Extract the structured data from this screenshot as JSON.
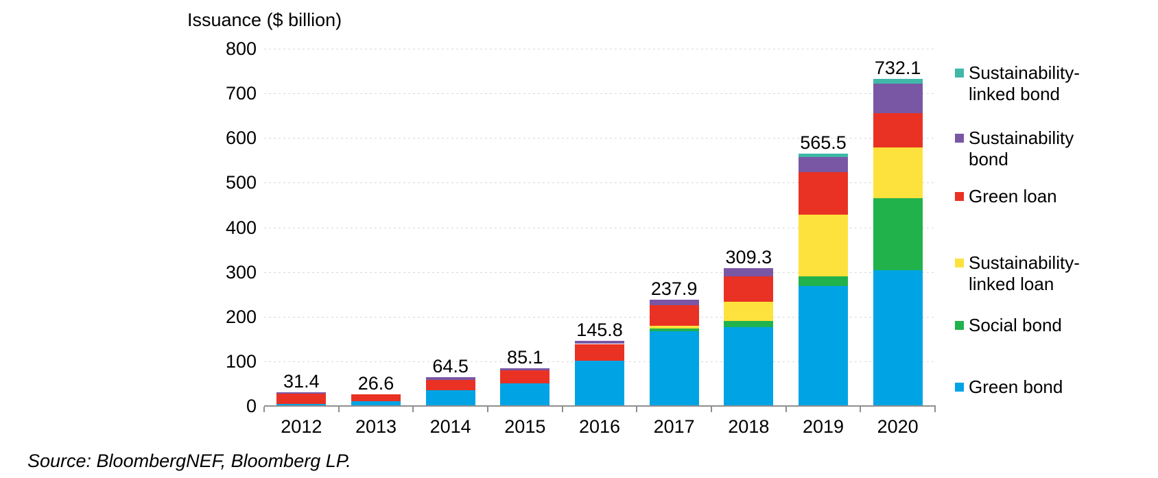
{
  "chart_data": {
    "type": "bar",
    "stacked": true,
    "title": "Issuance ($ billion)",
    "xlabel": "",
    "ylabel": "Issuance ($ billion)",
    "ylim": [
      0,
      800
    ],
    "y_ticks": [
      0,
      100,
      200,
      300,
      400,
      500,
      600,
      700,
      800
    ],
    "grid": "horizontal-dashed",
    "legend_position": "right",
    "legend_order_top_to_bottom": [
      "Sustainability-linked bond",
      "Sustainability bond",
      "Green loan",
      "Sustainability-linked loan",
      "Social bond",
      "Green bond"
    ],
    "categories": [
      "2012",
      "2013",
      "2014",
      "2015",
      "2016",
      "2017",
      "2018",
      "2019",
      "2020"
    ],
    "totals": [
      31.4,
      26.6,
      64.5,
      85.1,
      145.8,
      237.9,
      309.3,
      565.5,
      732.1
    ],
    "total_labels": [
      "31.4",
      "26.6",
      "64.5",
      "85.1",
      "145.8",
      "237.9",
      "309.3",
      "565.5",
      "732.1"
    ],
    "series": [
      {
        "name": "Green bond",
        "color": "#00a4e4",
        "values": [
          5.2,
          11.5,
          36.0,
          50.0,
          101.0,
          168.0,
          177.0,
          269.0,
          304.0
        ]
      },
      {
        "name": "Social bond",
        "color": "#21b24c",
        "values": [
          0,
          0,
          0,
          0,
          0,
          6.0,
          13.0,
          21.0,
          161.0
        ]
      },
      {
        "name": "Sustainability-linked loan",
        "color": "#fde23d",
        "values": [
          0,
          0,
          0,
          0,
          0,
          5.0,
          43.0,
          139.0,
          114.0
        ]
      },
      {
        "name": "Green loan",
        "color": "#e93223",
        "values": [
          22.5,
          15.1,
          22.0,
          29.5,
          38.0,
          46.0,
          57.0,
          95.0,
          76.0
        ]
      },
      {
        "name": "Sustainability bond",
        "color": "#7a57a5",
        "values": [
          3.7,
          0,
          6.5,
          5.6,
          6.8,
          12.9,
          19.3,
          33.5,
          67.0
        ]
      },
      {
        "name": "Sustainability-linked bond",
        "color": "#3fb8a8",
        "values": [
          0,
          0,
          0,
          0,
          0,
          0,
          0,
          8.0,
          10.1
        ]
      }
    ]
  },
  "footer": {
    "source": "Source: BloombergNEF, Bloomberg LP."
  }
}
